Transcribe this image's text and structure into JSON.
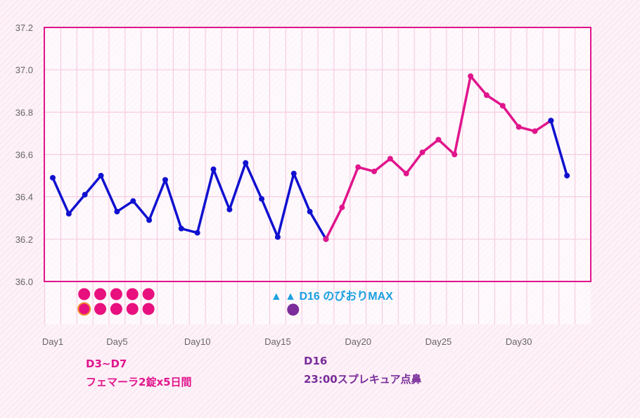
{
  "chart_data": {
    "type": "line",
    "ylim": [
      36.0,
      37.2
    ],
    "y_ticks": [
      "36.0",
      "36.2",
      "36.4",
      "36.6",
      "36.8",
      "37.0",
      "37.2"
    ],
    "x_tick_labels": [
      {
        "day": 1,
        "label": "Day1"
      },
      {
        "day": 5,
        "label": "Day5"
      },
      {
        "day": 10,
        "label": "Day10"
      },
      {
        "day": 15,
        "label": "Day15"
      },
      {
        "day": 20,
        "label": "Day20"
      },
      {
        "day": 25,
        "label": "Day25"
      },
      {
        "day": 30,
        "label": "Day30"
      }
    ],
    "x_range": [
      1,
      34
    ],
    "grid": true,
    "series": [
      {
        "color": "#1010d0",
        "days": [
          1,
          2,
          3,
          4,
          5,
          6,
          7,
          8,
          9,
          10,
          11,
          12,
          13,
          14,
          15,
          16,
          17,
          18
        ],
        "values": [
          36.49,
          36.32,
          36.41,
          36.5,
          36.33,
          36.38,
          36.29,
          36.48,
          36.25,
          36.23,
          36.53,
          36.34,
          36.56,
          36.39,
          36.21,
          36.51,
          36.33,
          36.2
        ]
      },
      {
        "color": "#e0158c",
        "days": [
          18,
          19,
          20,
          21,
          22,
          23,
          24,
          25,
          26,
          27,
          28,
          29,
          30,
          31,
          32
        ],
        "values": [
          36.2,
          36.35,
          36.54,
          36.52,
          36.58,
          36.51,
          36.61,
          36.67,
          36.6,
          36.97,
          36.88,
          36.83,
          36.73,
          36.71,
          36.76
        ]
      },
      {
        "color": "#1010d0",
        "days": [
          32,
          33
        ],
        "values": [
          36.76,
          36.5
        ]
      }
    ],
    "medication_dots": {
      "color": "#e8107e",
      "first_dot_color": "#f28a2e",
      "days": [
        3,
        4,
        5,
        6,
        7
      ],
      "rows": 2
    },
    "trigger_dot": {
      "day": 16,
      "color": "#7a2d9a"
    },
    "annotation": {
      "text": "▲ ▲ D16 のびおりMAX",
      "color": "#1aa0e0",
      "day": 15
    }
  },
  "notes": {
    "left_title": "D3~D7",
    "left_desc": "フェマーラ2錠x5日間",
    "right_title": "D16",
    "right_desc": "23:00スプレキュア点鼻"
  }
}
